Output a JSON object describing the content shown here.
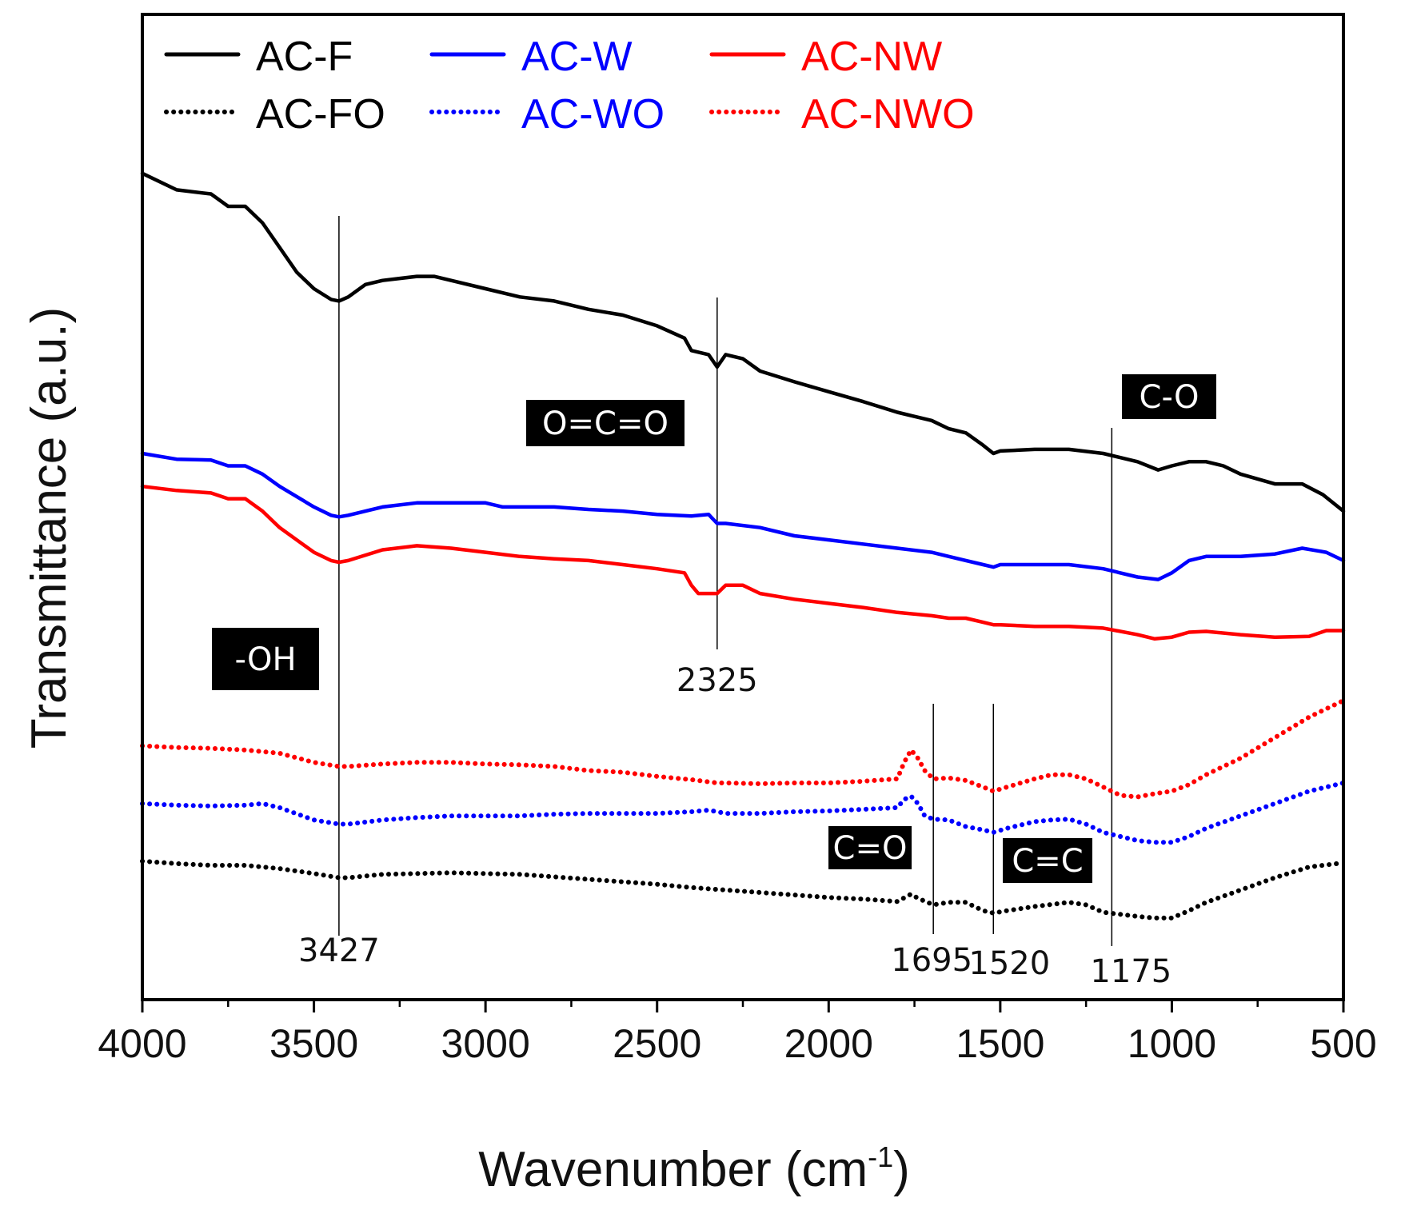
{
  "chart_data": {
    "type": "line",
    "title": "",
    "xlabel": "Wavenumber (cm",
    "xlabel_sup": "-1",
    "xlabel_close": ")",
    "ylabel": "Transmittance (a.u.)",
    "xlim": [
      4000,
      500
    ],
    "x_ticks": [
      4000,
      3500,
      3000,
      2500,
      2000,
      1500,
      1000,
      500
    ],
    "x_tick_labels": [
      "4000",
      "3500",
      "3000",
      "2500",
      "2000",
      "1500",
      "1000",
      "500"
    ],
    "ylim": [
      0,
      100
    ],
    "legend_position": "top-left",
    "series": [
      {
        "name": "AC-F",
        "color": "#000000",
        "style": "solid",
        "points": [
          [
            4000,
            94
          ],
          [
            3900,
            92
          ],
          [
            3800,
            91.5
          ],
          [
            3750,
            90
          ],
          [
            3700,
            90
          ],
          [
            3650,
            88
          ],
          [
            3600,
            85
          ],
          [
            3550,
            82
          ],
          [
            3500,
            80
          ],
          [
            3450,
            78.7
          ],
          [
            3427,
            78.5
          ],
          [
            3400,
            79
          ],
          [
            3350,
            80.5
          ],
          [
            3300,
            81
          ],
          [
            3200,
            81.5
          ],
          [
            3150,
            81.5
          ],
          [
            3100,
            81
          ],
          [
            3000,
            80
          ],
          [
            2900,
            79
          ],
          [
            2800,
            78.5
          ],
          [
            2700,
            77.5
          ],
          [
            2600,
            76.8
          ],
          [
            2500,
            75.5
          ],
          [
            2420,
            74
          ],
          [
            2400,
            72.5
          ],
          [
            2350,
            72
          ],
          [
            2325,
            70.5
          ],
          [
            2300,
            72
          ],
          [
            2250,
            71.5
          ],
          [
            2200,
            70
          ],
          [
            2100,
            68.7
          ],
          [
            2000,
            67.5
          ],
          [
            1900,
            66.3
          ],
          [
            1800,
            65
          ],
          [
            1700,
            64
          ],
          [
            1650,
            63
          ],
          [
            1600,
            62.5
          ],
          [
            1550,
            61
          ],
          [
            1520,
            60
          ],
          [
            1500,
            60.3
          ],
          [
            1400,
            60.5
          ],
          [
            1300,
            60.5
          ],
          [
            1200,
            60
          ],
          [
            1100,
            59
          ],
          [
            1040,
            58
          ],
          [
            1000,
            58.5
          ],
          [
            950,
            59
          ],
          [
            900,
            59
          ],
          [
            850,
            58.5
          ],
          [
            800,
            57.5
          ],
          [
            700,
            56.3
          ],
          [
            620,
            56.3
          ],
          [
            560,
            55
          ],
          [
            500,
            53
          ]
        ]
      },
      {
        "name": "AC-W",
        "color": "#0000ff",
        "style": "solid",
        "points": [
          [
            4000,
            60
          ],
          [
            3900,
            59.3
          ],
          [
            3800,
            59.2
          ],
          [
            3750,
            58.5
          ],
          [
            3700,
            58.5
          ],
          [
            3650,
            57.5
          ],
          [
            3600,
            56
          ],
          [
            3500,
            53.5
          ],
          [
            3450,
            52.5
          ],
          [
            3427,
            52.3
          ],
          [
            3400,
            52.5
          ],
          [
            3300,
            53.5
          ],
          [
            3200,
            54
          ],
          [
            3100,
            54
          ],
          [
            3000,
            54
          ],
          [
            2950,
            53.5
          ],
          [
            2900,
            53.5
          ],
          [
            2800,
            53.5
          ],
          [
            2700,
            53.2
          ],
          [
            2600,
            53
          ],
          [
            2500,
            52.6
          ],
          [
            2400,
            52.4
          ],
          [
            2350,
            52.6
          ],
          [
            2325,
            51.5
          ],
          [
            2300,
            51.5
          ],
          [
            2200,
            51
          ],
          [
            2100,
            50
          ],
          [
            2000,
            49.5
          ],
          [
            1900,
            49
          ],
          [
            1800,
            48.5
          ],
          [
            1700,
            48
          ],
          [
            1650,
            47.5
          ],
          [
            1600,
            47
          ],
          [
            1550,
            46.5
          ],
          [
            1520,
            46.2
          ],
          [
            1500,
            46.5
          ],
          [
            1400,
            46.5
          ],
          [
            1300,
            46.5
          ],
          [
            1200,
            46
          ],
          [
            1100,
            45
          ],
          [
            1040,
            44.7
          ],
          [
            1000,
            45.5
          ],
          [
            950,
            47
          ],
          [
            900,
            47.5
          ],
          [
            800,
            47.5
          ],
          [
            700,
            47.8
          ],
          [
            620,
            48.5
          ],
          [
            550,
            48
          ],
          [
            500,
            47
          ]
        ]
      },
      {
        "name": "AC-NW",
        "color": "#ff0000",
        "style": "solid",
        "points": [
          [
            4000,
            56
          ],
          [
            3900,
            55.5
          ],
          [
            3800,
            55.2
          ],
          [
            3750,
            54.5
          ],
          [
            3700,
            54.5
          ],
          [
            3650,
            53
          ],
          [
            3600,
            51
          ],
          [
            3500,
            48
          ],
          [
            3450,
            47
          ],
          [
            3427,
            46.8
          ],
          [
            3400,
            47
          ],
          [
            3300,
            48.3
          ],
          [
            3200,
            48.8
          ],
          [
            3100,
            48.5
          ],
          [
            3000,
            48
          ],
          [
            2900,
            47.5
          ],
          [
            2800,
            47.2
          ],
          [
            2700,
            47
          ],
          [
            2600,
            46.5
          ],
          [
            2500,
            46
          ],
          [
            2420,
            45.5
          ],
          [
            2400,
            44
          ],
          [
            2380,
            43
          ],
          [
            2350,
            43
          ],
          [
            2325,
            43
          ],
          [
            2300,
            44
          ],
          [
            2250,
            44
          ],
          [
            2200,
            43
          ],
          [
            2100,
            42.3
          ],
          [
            2000,
            41.8
          ],
          [
            1900,
            41.3
          ],
          [
            1800,
            40.7
          ],
          [
            1700,
            40.3
          ],
          [
            1650,
            40
          ],
          [
            1600,
            40
          ],
          [
            1550,
            39.5
          ],
          [
            1520,
            39.2
          ],
          [
            1500,
            39.2
          ],
          [
            1400,
            39
          ],
          [
            1300,
            39
          ],
          [
            1200,
            38.8
          ],
          [
            1100,
            38
          ],
          [
            1050,
            37.5
          ],
          [
            1000,
            37.7
          ],
          [
            950,
            38.3
          ],
          [
            900,
            38.4
          ],
          [
            800,
            38
          ],
          [
            700,
            37.7
          ],
          [
            600,
            37.8
          ],
          [
            550,
            38.5
          ],
          [
            500,
            38.5
          ]
        ]
      },
      {
        "name": "AC-FO",
        "color": "#000000",
        "style": "dotted",
        "points": [
          [
            4000,
            10.5
          ],
          [
            3900,
            10.2
          ],
          [
            3800,
            10
          ],
          [
            3700,
            10
          ],
          [
            3600,
            9.6
          ],
          [
            3500,
            9
          ],
          [
            3427,
            8.5
          ],
          [
            3400,
            8.5
          ],
          [
            3300,
            8.9
          ],
          [
            3200,
            9
          ],
          [
            3100,
            9.1
          ],
          [
            3000,
            9
          ],
          [
            2900,
            8.9
          ],
          [
            2800,
            8.6
          ],
          [
            2700,
            8.3
          ],
          [
            2600,
            8
          ],
          [
            2500,
            7.7
          ],
          [
            2400,
            7.3
          ],
          [
            2300,
            7
          ],
          [
            2200,
            6.7
          ],
          [
            2100,
            6.4
          ],
          [
            2000,
            6.1
          ],
          [
            1900,
            5.9
          ],
          [
            1800,
            5.6
          ],
          [
            1760,
            6.5
          ],
          [
            1740,
            6
          ],
          [
            1695,
            5.2
          ],
          [
            1650,
            5.5
          ],
          [
            1600,
            5.5
          ],
          [
            1550,
            4.5
          ],
          [
            1520,
            4.2
          ],
          [
            1480,
            4.5
          ],
          [
            1400,
            5
          ],
          [
            1300,
            5.5
          ],
          [
            1250,
            5.2
          ],
          [
            1200,
            4.3
          ],
          [
            1100,
            3.8
          ],
          [
            1050,
            3.6
          ],
          [
            1000,
            3.6
          ],
          [
            950,
            4.5
          ],
          [
            900,
            5.5
          ],
          [
            800,
            7
          ],
          [
            700,
            8.5
          ],
          [
            600,
            9.8
          ],
          [
            500,
            10.3
          ]
        ]
      },
      {
        "name": "AC-WO",
        "color": "#0000ff",
        "style": "dotted",
        "points": [
          [
            4000,
            17.5
          ],
          [
            3900,
            17.3
          ],
          [
            3800,
            17.2
          ],
          [
            3700,
            17.3
          ],
          [
            3650,
            17.5
          ],
          [
            3600,
            17
          ],
          [
            3500,
            15.5
          ],
          [
            3427,
            15
          ],
          [
            3400,
            15
          ],
          [
            3300,
            15.5
          ],
          [
            3200,
            15.8
          ],
          [
            3100,
            16
          ],
          [
            3000,
            16
          ],
          [
            2900,
            16
          ],
          [
            2800,
            16.2
          ],
          [
            2700,
            16.3
          ],
          [
            2600,
            16.3
          ],
          [
            2500,
            16.3
          ],
          [
            2400,
            16.5
          ],
          [
            2350,
            16.7
          ],
          [
            2325,
            16.5
          ],
          [
            2300,
            16.3
          ],
          [
            2200,
            16.3
          ],
          [
            2100,
            16.5
          ],
          [
            2000,
            16.6
          ],
          [
            1900,
            16.8
          ],
          [
            1800,
            17
          ],
          [
            1780,
            18
          ],
          [
            1760,
            18.4
          ],
          [
            1740,
            17.5
          ],
          [
            1720,
            16
          ],
          [
            1695,
            15.6
          ],
          [
            1650,
            15.5
          ],
          [
            1600,
            14.7
          ],
          [
            1550,
            14.3
          ],
          [
            1520,
            14
          ],
          [
            1480,
            14.5
          ],
          [
            1400,
            15.3
          ],
          [
            1350,
            15.5
          ],
          [
            1300,
            15.6
          ],
          [
            1250,
            15
          ],
          [
            1200,
            14
          ],
          [
            1100,
            13
          ],
          [
            1050,
            12.8
          ],
          [
            1000,
            12.8
          ],
          [
            950,
            13.5
          ],
          [
            900,
            14.5
          ],
          [
            800,
            16
          ],
          [
            700,
            17.5
          ],
          [
            600,
            19
          ],
          [
            500,
            20
          ]
        ]
      },
      {
        "name": "AC-NWO",
        "color": "#ff0000",
        "style": "dotted",
        "points": [
          [
            4000,
            24.5
          ],
          [
            3900,
            24.3
          ],
          [
            3800,
            24.2
          ],
          [
            3700,
            24
          ],
          [
            3600,
            23.6
          ],
          [
            3500,
            22.5
          ],
          [
            3427,
            22
          ],
          [
            3400,
            22
          ],
          [
            3300,
            22.3
          ],
          [
            3200,
            22.5
          ],
          [
            3100,
            22.5
          ],
          [
            3000,
            22.3
          ],
          [
            2900,
            22.2
          ],
          [
            2800,
            22
          ],
          [
            2700,
            21.5
          ],
          [
            2600,
            21.3
          ],
          [
            2500,
            20.8
          ],
          [
            2400,
            20.4
          ],
          [
            2325,
            20
          ],
          [
            2300,
            20
          ],
          [
            2200,
            19.9
          ],
          [
            2100,
            20
          ],
          [
            2000,
            20
          ],
          [
            1900,
            20.2
          ],
          [
            1800,
            20.5
          ],
          [
            1780,
            22.5
          ],
          [
            1760,
            24
          ],
          [
            1740,
            23
          ],
          [
            1720,
            21.5
          ],
          [
            1695,
            20.5
          ],
          [
            1650,
            20.6
          ],
          [
            1600,
            20.3
          ],
          [
            1550,
            19.5
          ],
          [
            1520,
            19
          ],
          [
            1480,
            19.5
          ],
          [
            1400,
            20.5
          ],
          [
            1350,
            21
          ],
          [
            1300,
            21
          ],
          [
            1250,
            20.5
          ],
          [
            1200,
            19.5
          ],
          [
            1150,
            18.5
          ],
          [
            1100,
            18.3
          ],
          [
            1050,
            18.7
          ],
          [
            1000,
            19
          ],
          [
            950,
            19.8
          ],
          [
            900,
            21
          ],
          [
            800,
            23
          ],
          [
            700,
            25.5
          ],
          [
            600,
            28
          ],
          [
            500,
            30
          ]
        ]
      }
    ],
    "peak_markers": [
      {
        "x": 3427,
        "label": "3427"
      },
      {
        "x": 2325,
        "label": "2325"
      },
      {
        "x": 1695,
        "label": "1695"
      },
      {
        "x": 1520,
        "label": "1520"
      },
      {
        "x": 1175,
        "label": "1175"
      }
    ],
    "group_labels": [
      {
        "text": "-OH",
        "x": 3427
      },
      {
        "text": "O=C=O",
        "x": 2325
      },
      {
        "text": "C=O",
        "x": 1695
      },
      {
        "text": "C=C",
        "x": 1520
      },
      {
        "text": "C-O",
        "x": 1175
      }
    ]
  }
}
